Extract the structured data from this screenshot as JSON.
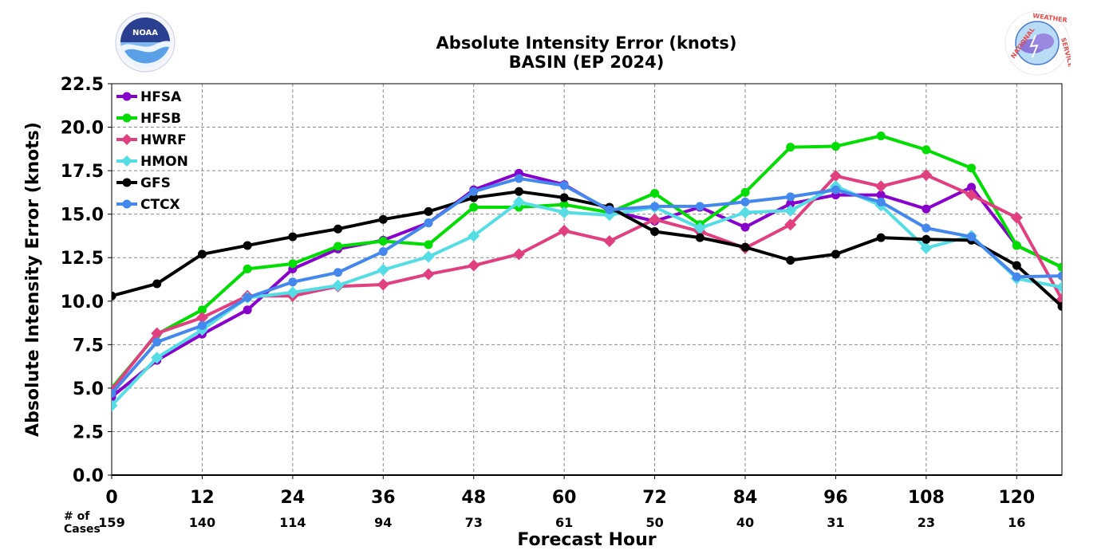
{
  "chart_data": {
    "type": "line",
    "title": "Absolute Intensity Error (knots)",
    "subtitle": "BASIN (EP 2024)",
    "xlabel": "Forecast Hour",
    "ylabel": "Absolute Intensity Error (knots)",
    "xlim": [
      0,
      126
    ],
    "ylim": [
      0,
      22.5
    ],
    "x_ticks": [
      0,
      12,
      24,
      36,
      48,
      60,
      72,
      84,
      96,
      108,
      120
    ],
    "y_ticks": [
      "0.0",
      "2.5",
      "5.0",
      "7.5",
      "10.0",
      "12.5",
      "15.0",
      "17.5",
      "20.0",
      "22.5"
    ],
    "grid": true,
    "legend_position": "top-left",
    "cases_label": "# of\nCases",
    "cases": [
      {
        "hour": 0,
        "count": "159"
      },
      {
        "hour": 12,
        "count": "140"
      },
      {
        "hour": 24,
        "count": "114"
      },
      {
        "hour": 36,
        "count": "94"
      },
      {
        "hour": 48,
        "count": "73"
      },
      {
        "hour": 60,
        "count": "61"
      },
      {
        "hour": 72,
        "count": "50"
      },
      {
        "hour": 84,
        "count": "40"
      },
      {
        "hour": 96,
        "count": "31"
      },
      {
        "hour": 108,
        "count": "23"
      },
      {
        "hour": 120,
        "count": "16"
      }
    ],
    "x": [
      0,
      6,
      12,
      18,
      24,
      30,
      36,
      42,
      48,
      54,
      60,
      66,
      72,
      78,
      84,
      90,
      96,
      102,
      108,
      114,
      120,
      126
    ],
    "series": [
      {
        "name": "HFSA",
        "color": "#8800cc",
        "marker": "circle",
        "values": [
          4.5,
          6.6,
          8.1,
          9.5,
          11.85,
          13.0,
          13.5,
          14.5,
          16.4,
          17.35,
          16.7,
          15.2,
          14.6,
          15.4,
          14.25,
          15.6,
          16.1,
          16.1,
          15.3,
          16.55,
          13.2,
          11.95
        ]
      },
      {
        "name": "HFSB",
        "color": "#00dd00",
        "marker": "circle",
        "values": [
          5.0,
          8.1,
          9.5,
          11.85,
          12.15,
          13.15,
          13.45,
          13.25,
          15.4,
          15.4,
          15.55,
          15.1,
          16.2,
          14.4,
          16.25,
          18.85,
          18.9,
          19.5,
          18.7,
          17.65,
          13.2,
          11.95
        ]
      },
      {
        "name": "HWRF",
        "color": "#e0407f",
        "marker": "diamond",
        "values": [
          4.9,
          8.15,
          9.05,
          10.3,
          10.3,
          10.85,
          10.95,
          11.55,
          12.05,
          12.7,
          14.05,
          13.45,
          14.7,
          14.0,
          13.05,
          14.4,
          17.2,
          16.6,
          17.25,
          16.1,
          14.8,
          10.1
        ]
      },
      {
        "name": "HMON",
        "color": "#55dde5",
        "marker": "diamond",
        "values": [
          4.0,
          6.75,
          8.35,
          10.2,
          10.5,
          10.9,
          11.8,
          12.55,
          13.75,
          15.7,
          15.1,
          14.95,
          15.4,
          14.2,
          15.1,
          15.2,
          16.6,
          15.5,
          13.05,
          13.75,
          11.3,
          10.8
        ]
      },
      {
        "name": "GFS",
        "color": "#000000",
        "marker": "circle",
        "values": [
          10.3,
          11.0,
          12.7,
          13.2,
          13.7,
          14.15,
          14.7,
          15.15,
          15.95,
          16.3,
          15.95,
          15.4,
          14.0,
          13.65,
          13.1,
          12.35,
          12.7,
          13.65,
          13.55,
          13.5,
          12.05,
          9.7
        ]
      },
      {
        "name": "CTCX",
        "color": "#4488ee",
        "marker": "circle",
        "values": [
          4.7,
          7.65,
          8.6,
          10.2,
          11.1,
          11.65,
          12.85,
          14.5,
          16.3,
          17.05,
          16.65,
          15.25,
          15.45,
          15.45,
          15.7,
          16.0,
          16.4,
          15.7,
          14.2,
          13.7,
          11.4,
          11.45
        ]
      }
    ]
  }
}
